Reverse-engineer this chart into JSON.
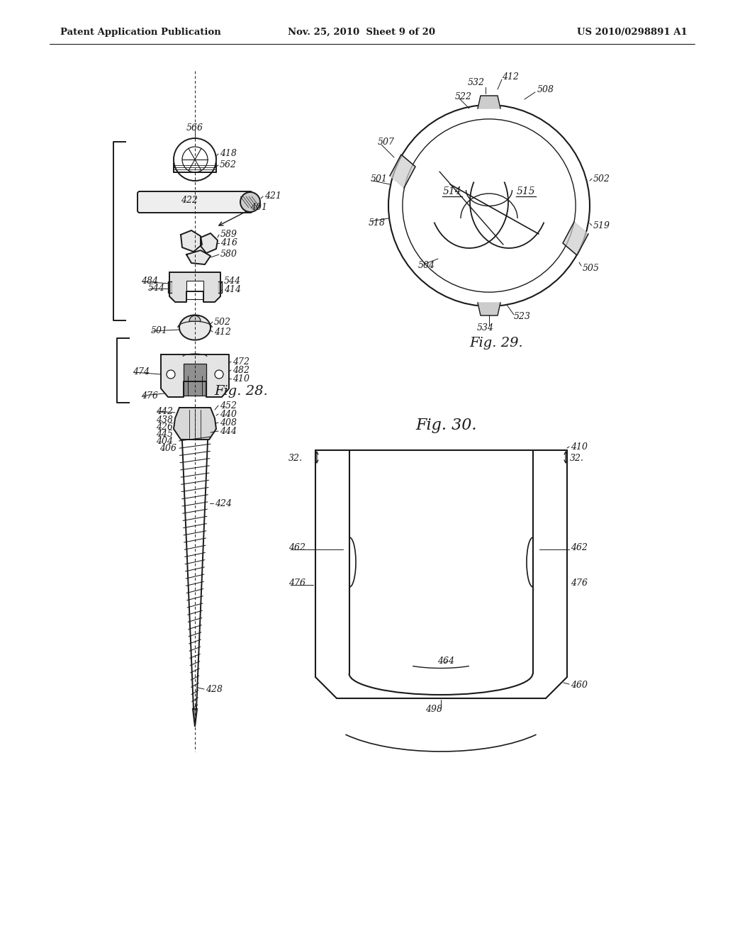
{
  "background_color": "#ffffff",
  "header_left": "Patent Application Publication",
  "header_center": "Nov. 25, 2010  Sheet 9 of 20",
  "header_right": "US 2010/0298891 A1",
  "fig28_label": "Fig. 28.",
  "fig29_label": "Fig. 29.",
  "fig30_label": "Fig. 30.",
  "text_color": "#1a1a1a",
  "line_color": "#1a1a1a",
  "lw_main": 1.4,
  "lw_thin": 0.8,
  "lw_leader": 0.7
}
